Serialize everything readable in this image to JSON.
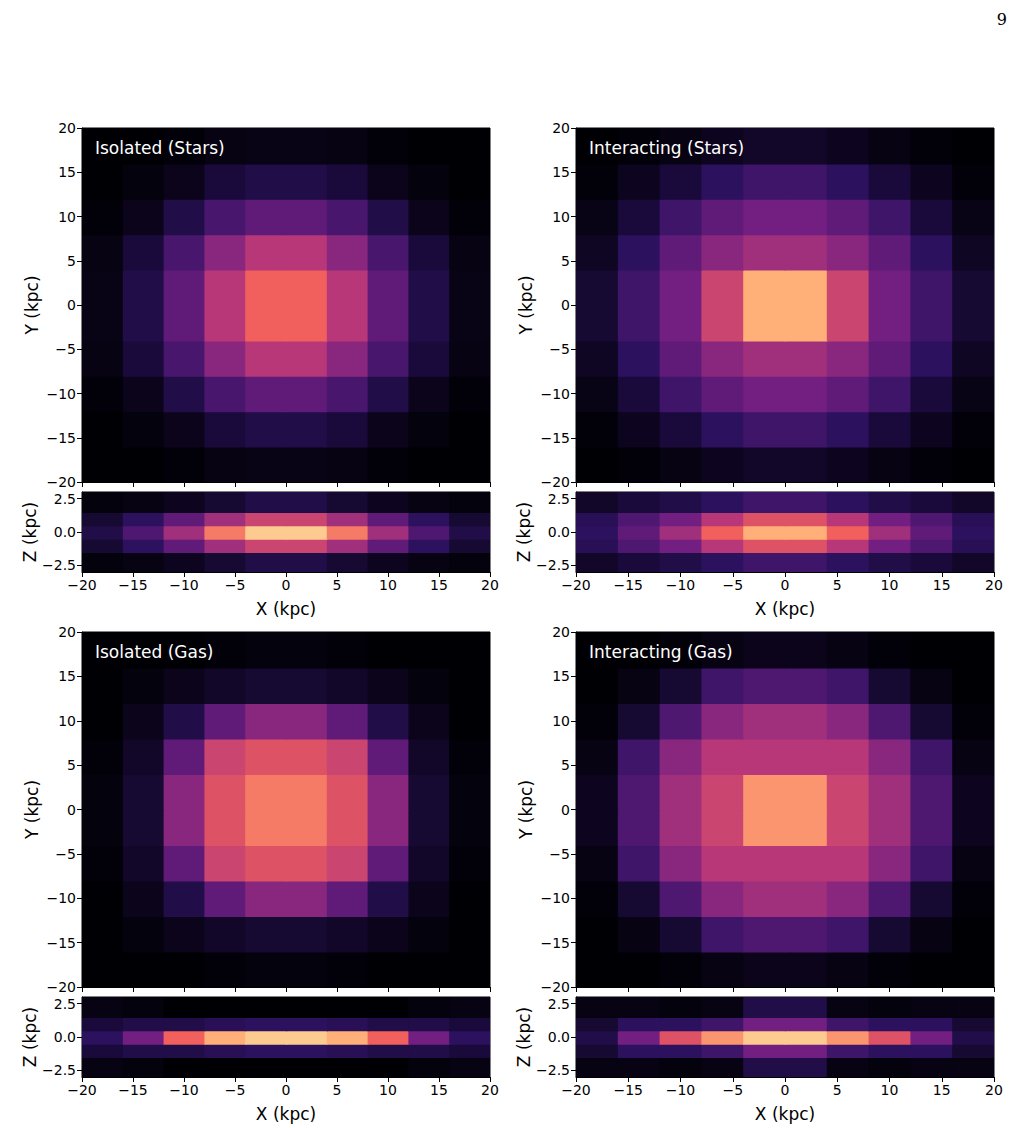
{
  "page": "9",
  "chart_data": [
    {
      "type": "heatmap",
      "title": "Isolated (Stars)",
      "ylabel": "Y (kpc)",
      "tick_labels": "y",
      "xlim": [
        -20,
        20
      ],
      "ylim": [
        -20,
        20
      ],
      "xticks": [
        {
          "value": -20,
          "label": "−20"
        },
        {
          "value": -15,
          "label": "−15"
        },
        {
          "value": -10,
          "label": "−10"
        },
        {
          "value": -5,
          "label": "−5"
        },
        0,
        5,
        10,
        15,
        20
      ],
      "yticks": [
        {
          "value": -20,
          "label": "−20"
        },
        {
          "value": -15,
          "label": "−15"
        },
        {
          "value": -10,
          "label": "−10"
        },
        {
          "value": -5,
          "label": "−5"
        },
        0,
        5,
        10,
        15,
        20
      ],
      "x_bins": [
        -20,
        -16,
        -12,
        -8,
        -4,
        0,
        4,
        8,
        12,
        16,
        20
      ],
      "y_bins": [
        -20,
        -16,
        -12,
        -8,
        -4,
        0,
        4,
        8,
        12,
        16,
        20
      ],
      "color_range": [
        0,
        10
      ],
      "cells": [
        [
          0,
          0,
          0.1,
          0.3,
          0.4,
          0.4,
          0.3,
          0.1,
          0,
          0
        ],
        [
          0,
          0.2,
          0.5,
          1.2,
          1.5,
          1.5,
          1.2,
          0.5,
          0.2,
          0
        ],
        [
          0.1,
          0.5,
          1.5,
          2.8,
          3.5,
          3.5,
          2.8,
          1.5,
          0.5,
          0.1
        ],
        [
          0.3,
          1.2,
          2.8,
          4.5,
          5.5,
          5.5,
          4.5,
          2.8,
          1.2,
          0.3
        ],
        [
          0.4,
          1.5,
          3.5,
          5.5,
          7,
          7,
          5.5,
          3.5,
          1.5,
          0.4
        ],
        [
          0.4,
          1.5,
          3.5,
          5.5,
          7,
          7,
          5.5,
          3.5,
          1.5,
          0.4
        ],
        [
          0.3,
          1.2,
          2.8,
          4.5,
          5.5,
          5.5,
          4.5,
          2.8,
          1.2,
          0.3
        ],
        [
          0.1,
          0.5,
          1.5,
          2.8,
          3.5,
          3.5,
          2.8,
          1.5,
          0.5,
          0.1
        ],
        [
          0,
          0.2,
          0.5,
          1.2,
          1.5,
          1.5,
          1.2,
          0.5,
          0.2,
          0
        ],
        [
          0,
          0,
          0.1,
          0.3,
          0.4,
          0.4,
          0.3,
          0.1,
          0,
          0
        ]
      ]
    },
    {
      "type": "heatmap",
      "xlabel": "X (kpc)",
      "ylabel": "Z (kpc)",
      "tick_labels": true,
      "xlim": [
        -20,
        20
      ],
      "ylim": [
        -3,
        3
      ],
      "xticks": [
        {
          "value": -20,
          "label": "−20"
        },
        {
          "value": -15,
          "label": "−15"
        },
        {
          "value": -10,
          "label": "−10"
        },
        {
          "value": -5,
          "label": "−5"
        },
        0,
        5,
        10,
        15,
        20
      ],
      "yticks": [
        {
          "value": -2.5,
          "label": "−2.5"
        },
        {
          "value": 0,
          "label": "0.0"
        },
        2.5
      ],
      "x_bins": [
        -20,
        -16,
        -12,
        -8,
        -4,
        0,
        4,
        8,
        12,
        16,
        20
      ],
      "y_bins": [
        -3,
        -1.5,
        -0.5,
        0.5,
        1.5,
        3
      ],
      "color_range": [
        0,
        10
      ],
      "cells": [
        [
          0.2,
          0.3,
          0.6,
          1,
          1.5,
          1.5,
          1,
          0.6,
          0.3,
          0.2
        ],
        [
          1,
          2,
          3.5,
          5,
          6,
          6,
          5,
          3.5,
          2,
          1
        ],
        [
          1.5,
          3,
          5,
          7.5,
          9,
          9,
          7.5,
          5,
          3,
          1.5
        ],
        [
          1,
          2,
          3.5,
          5,
          6,
          6,
          5,
          3.5,
          2,
          1
        ],
        [
          0.2,
          0.3,
          0.6,
          1,
          1.5,
          1.5,
          1,
          0.6,
          0.3,
          0.2
        ]
      ]
    },
    {
      "type": "heatmap",
      "title": "Interacting (Stars)",
      "ylabel": "Y (kpc)",
      "tick_labels": "y",
      "xlim": [
        -20,
        20
      ],
      "ylim": [
        -20,
        20
      ],
      "xticks": [
        {
          "value": -20,
          "label": "−20"
        },
        {
          "value": -15,
          "label": "−15"
        },
        {
          "value": -10,
          "label": "−10"
        },
        {
          "value": -5,
          "label": "−5"
        },
        0,
        5,
        10,
        15,
        20
      ],
      "yticks": [
        {
          "value": -20,
          "label": "−20"
        },
        {
          "value": -15,
          "label": "−15"
        },
        {
          "value": -10,
          "label": "−10"
        },
        {
          "value": -5,
          "label": "−5"
        },
        0,
        5,
        10,
        15,
        20
      ],
      "x_bins": [
        -20,
        -16,
        -12,
        -8,
        -4,
        0,
        4,
        8,
        12,
        16,
        20
      ],
      "y_bins": [
        -20,
        -16,
        -12,
        -8,
        -4,
        0,
        4,
        8,
        12,
        16,
        20
      ],
      "color_range": [
        0,
        10
      ],
      "cells": [
        [
          0,
          0.1,
          0.3,
          0.6,
          0.8,
          0.8,
          0.6,
          0.3,
          0.1,
          0
        ],
        [
          0.1,
          0.6,
          1.2,
          2,
          2.5,
          2.5,
          2,
          1.2,
          0.6,
          0.1
        ],
        [
          0.4,
          1.2,
          2.5,
          3.5,
          4,
          4,
          3.5,
          2.5,
          1.2,
          0.4
        ],
        [
          0.7,
          2,
          3.5,
          4.5,
          5,
          5,
          4.5,
          3.5,
          2,
          0.7
        ],
        [
          1,
          2.5,
          4,
          6,
          8.5,
          8.5,
          6,
          4,
          2.5,
          1
        ],
        [
          1,
          2.5,
          4,
          6,
          8.5,
          8.5,
          6,
          4,
          2.5,
          1
        ],
        [
          0.7,
          2,
          3.5,
          4.5,
          5,
          5,
          4.5,
          3.5,
          2,
          0.7
        ],
        [
          0.4,
          1.2,
          2.5,
          3.5,
          4,
          4,
          3.5,
          2.5,
          1.2,
          0.4
        ],
        [
          0.1,
          0.6,
          1.2,
          2,
          2.5,
          2.5,
          2,
          1.2,
          0.6,
          0.1
        ],
        [
          0,
          0.1,
          0.3,
          0.6,
          0.8,
          0.8,
          0.6,
          0.3,
          0.1,
          0
        ]
      ]
    },
    {
      "type": "heatmap",
      "xlabel": "X (kpc)",
      "ylabel": "Z (kpc)",
      "tick_labels": true,
      "xlim": [
        -20,
        20
      ],
      "ylim": [
        -3,
        3
      ],
      "xticks": [
        {
          "value": -20,
          "label": "−20"
        },
        {
          "value": -15,
          "label": "−15"
        },
        {
          "value": -10,
          "label": "−10"
        },
        {
          "value": -5,
          "label": "−5"
        },
        0,
        5,
        10,
        15,
        20
      ],
      "yticks": [
        {
          "value": -2.5,
          "label": "−2.5"
        },
        {
          "value": 0,
          "label": "0.0"
        },
        2.5
      ],
      "x_bins": [
        -20,
        -16,
        -12,
        -8,
        -4,
        0,
        4,
        8,
        12,
        16,
        20
      ],
      "y_bins": [
        -3,
        -1.5,
        -0.5,
        0.5,
        1.5,
        3
      ],
      "color_range": [
        0,
        10
      ],
      "cells": [
        [
          0.8,
          1.2,
          1.5,
          2,
          2.5,
          2.5,
          2,
          1.5,
          1.2,
          0.8
        ],
        [
          1.8,
          3,
          4,
          5.5,
          6.5,
          6.5,
          5.5,
          4,
          3,
          1.8
        ],
        [
          2,
          3.5,
          5,
          7,
          8.5,
          8.5,
          7,
          5,
          3.5,
          2
        ],
        [
          1.8,
          3,
          4,
          5.5,
          6.5,
          6.5,
          5.5,
          4,
          3,
          1.8
        ],
        [
          0.8,
          1.2,
          1.5,
          2,
          2.5,
          2.5,
          2,
          1.5,
          1.2,
          0.8
        ]
      ]
    },
    {
      "type": "heatmap",
      "title": "Isolated (Gas)",
      "ylabel": "Y (kpc)",
      "tick_labels": "y",
      "xlim": [
        -20,
        20
      ],
      "ylim": [
        -20,
        20
      ],
      "xticks": [
        {
          "value": -20,
          "label": "−20"
        },
        {
          "value": -15,
          "label": "−15"
        },
        {
          "value": -10,
          "label": "−10"
        },
        {
          "value": -5,
          "label": "−5"
        },
        0,
        5,
        10,
        15,
        20
      ],
      "yticks": [
        {
          "value": -20,
          "label": "−20"
        },
        {
          "value": -15,
          "label": "−15"
        },
        {
          "value": -10,
          "label": "−10"
        },
        {
          "value": -5,
          "label": "−5"
        },
        0,
        5,
        10,
        15,
        20
      ],
      "x_bins": [
        -20,
        -16,
        -12,
        -8,
        -4,
        0,
        4,
        8,
        12,
        16,
        20
      ],
      "y_bins": [
        -20,
        -16,
        -12,
        -8,
        -4,
        0,
        4,
        8,
        12,
        16,
        20
      ],
      "color_range": [
        0,
        10
      ],
      "cells": [
        [
          0,
          0,
          0,
          0.1,
          0.2,
          0.2,
          0.1,
          0,
          0,
          0
        ],
        [
          0,
          0.2,
          0.5,
          0.8,
          1,
          1,
          0.8,
          0.5,
          0.2,
          0
        ],
        [
          0,
          0.5,
          1.5,
          3.5,
          4.5,
          4.5,
          3.5,
          1.5,
          0.5,
          0
        ],
        [
          0.1,
          0.8,
          3.5,
          6,
          6.5,
          6.5,
          6,
          3.5,
          0.8,
          0.1
        ],
        [
          0.2,
          1,
          4.5,
          6.5,
          7.5,
          7.5,
          6.5,
          4.5,
          1,
          0.2
        ],
        [
          0.2,
          1,
          4.5,
          6.5,
          7.5,
          7.5,
          6.5,
          4.5,
          1,
          0.2
        ],
        [
          0.1,
          0.8,
          3.5,
          6,
          6.5,
          6.5,
          6,
          3.5,
          0.8,
          0.1
        ],
        [
          0,
          0.5,
          1.5,
          3.5,
          4.5,
          4.5,
          3.5,
          1.5,
          0.5,
          0
        ],
        [
          0,
          0.2,
          0.5,
          0.8,
          1,
          1,
          0.8,
          0.5,
          0.2,
          0
        ],
        [
          0,
          0,
          0,
          0.1,
          0.2,
          0.2,
          0.1,
          0,
          0,
          0
        ]
      ]
    },
    {
      "type": "heatmap",
      "xlabel": "X (kpc)",
      "ylabel": "Z (kpc)",
      "tick_labels": true,
      "xlim": [
        -20,
        20
      ],
      "ylim": [
        -3,
        3
      ],
      "xticks": [
        {
          "value": -20,
          "label": "−20"
        },
        {
          "value": -15,
          "label": "−15"
        },
        {
          "value": -10,
          "label": "−10"
        },
        {
          "value": -5,
          "label": "−5"
        },
        0,
        5,
        10,
        15,
        20
      ],
      "yticks": [
        {
          "value": -2.5,
          "label": "−2.5"
        },
        {
          "value": 0,
          "label": "0.0"
        },
        2.5
      ],
      "x_bins": [
        -20,
        -16,
        -12,
        -8,
        -4,
        0,
        4,
        8,
        12,
        16,
        20
      ],
      "y_bins": [
        -3,
        -1.5,
        -0.5,
        0.5,
        1.5,
        3
      ],
      "color_range": [
        0,
        10
      ],
      "cells": [
        [
          0.3,
          0.2,
          0,
          0,
          0,
          0,
          0,
          0,
          0.2,
          0.3
        ],
        [
          1.2,
          1.5,
          1.5,
          1.8,
          2,
          2,
          1.8,
          1.5,
          1.5,
          1.2
        ],
        [
          2,
          4,
          7,
          8.5,
          9,
          9,
          8.5,
          7,
          4,
          2
        ],
        [
          1.2,
          1.5,
          1.5,
          1.8,
          2,
          2,
          1.8,
          1.5,
          1.5,
          1.2
        ],
        [
          0.3,
          0.2,
          0,
          0,
          0,
          0,
          0,
          0,
          0.2,
          0.3
        ]
      ]
    },
    {
      "type": "heatmap",
      "title": "Interacting (Gas)",
      "ylabel": "Y (kpc)",
      "tick_labels": "y",
      "xlim": [
        -20,
        20
      ],
      "ylim": [
        -20,
        20
      ],
      "xticks": [
        {
          "value": -20,
          "label": "−20"
        },
        {
          "value": -15,
          "label": "−15"
        },
        {
          "value": -10,
          "label": "−10"
        },
        {
          "value": -5,
          "label": "−5"
        },
        0,
        5,
        10,
        15,
        20
      ],
      "yticks": [
        {
          "value": -20,
          "label": "−20"
        },
        {
          "value": -15,
          "label": "−15"
        },
        {
          "value": -10,
          "label": "−10"
        },
        {
          "value": -5,
          "label": "−5"
        },
        0,
        5,
        10,
        15,
        20
      ],
      "x_bins": [
        -20,
        -16,
        -12,
        -8,
        -4,
        0,
        4,
        8,
        12,
        16,
        20
      ],
      "y_bins": [
        -20,
        -16,
        -12,
        -8,
        -4,
        0,
        4,
        8,
        12,
        16,
        20
      ],
      "color_range": [
        0,
        10
      ],
      "cells": [
        [
          0,
          0,
          0.1,
          0.3,
          0.5,
          0.5,
          0.3,
          0.1,
          0,
          0
        ],
        [
          0,
          0.3,
          1,
          2.5,
          3,
          3,
          2.5,
          1,
          0.3,
          0
        ],
        [
          0.1,
          1,
          3,
          4.5,
          5,
          5,
          4.5,
          3,
          1,
          0.1
        ],
        [
          0.3,
          2.5,
          4.5,
          5.5,
          5.5,
          5.5,
          5.5,
          4.5,
          2.5,
          0.3
        ],
        [
          0.6,
          3,
          5,
          6,
          8,
          8,
          6,
          5,
          3,
          0.6
        ],
        [
          0.6,
          3,
          5,
          6,
          8,
          8,
          6,
          5,
          3,
          0.6
        ],
        [
          0.3,
          2.5,
          4.5,
          5.5,
          5.5,
          5.5,
          5.5,
          4.5,
          2.5,
          0.3
        ],
        [
          0.1,
          1,
          3,
          4.5,
          5,
          5,
          4.5,
          3,
          1,
          0.1
        ],
        [
          0,
          0.3,
          1,
          2.5,
          3,
          3,
          2.5,
          1,
          0.3,
          0
        ],
        [
          0,
          0,
          0.1,
          0.3,
          0.5,
          0.5,
          0.3,
          0.1,
          0,
          0
        ]
      ]
    },
    {
      "type": "heatmap",
      "xlabel": "X (kpc)",
      "ylabel": "Z (kpc)",
      "tick_labels": true,
      "xlim": [
        -20,
        20
      ],
      "ylim": [
        -3,
        3
      ],
      "xticks": [
        {
          "value": -20,
          "label": "−20"
        },
        {
          "value": -15,
          "label": "−15"
        },
        {
          "value": -10,
          "label": "−10"
        },
        {
          "value": -5,
          "label": "−5"
        },
        0,
        5,
        10,
        15,
        20
      ],
      "yticks": [
        {
          "value": -2.5,
          "label": "−2.5"
        },
        {
          "value": 0,
          "label": "0.0"
        },
        2.5
      ],
      "x_bins": [
        -20,
        -16,
        -12,
        -8,
        -4,
        0,
        4,
        8,
        12,
        16,
        20
      ],
      "y_bins": [
        -3,
        -1.5,
        -0.5,
        0.5,
        1.5,
        3
      ],
      "color_range": [
        0,
        10
      ],
      "cells": [
        [
          0.3,
          0.3,
          0.2,
          0.3,
          1.5,
          1.5,
          0.3,
          0.2,
          0.3,
          0.3
        ],
        [
          1,
          2,
          2,
          2.5,
          4,
          4,
          2.5,
          2,
          2,
          1
        ],
        [
          1.5,
          4,
          6.5,
          8,
          9,
          9,
          8,
          6.5,
          4,
          1.5
        ],
        [
          1,
          2,
          2,
          2.5,
          4,
          4,
          2.5,
          2,
          2,
          1
        ],
        [
          0.3,
          0.3,
          0.2,
          0.3,
          1.5,
          1.5,
          0.3,
          0.2,
          0.3,
          0.3
        ]
      ]
    }
  ]
}
